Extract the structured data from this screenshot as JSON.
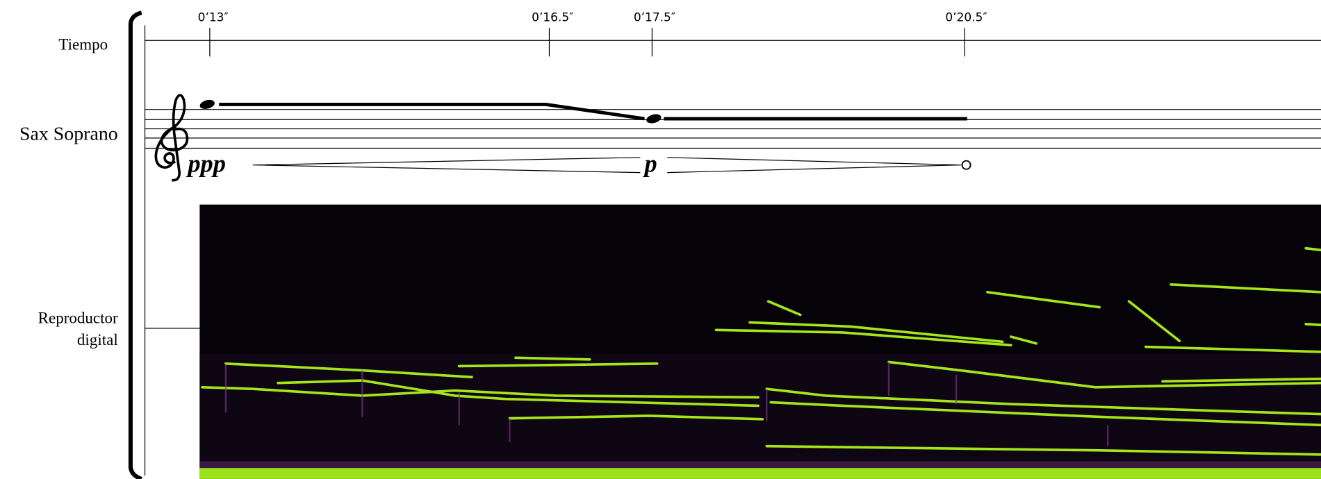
{
  "labels": {
    "tiempo": "Tiempo",
    "sax": "Sax Soprano",
    "reproductor": [
      "Reproductor",
      "digital"
    ]
  },
  "time_marks": [
    "0’13″",
    "0’16.5″",
    "0’17.5″",
    "0’20.5″"
  ],
  "dynamics": [
    "ppp",
    "p"
  ]
}
